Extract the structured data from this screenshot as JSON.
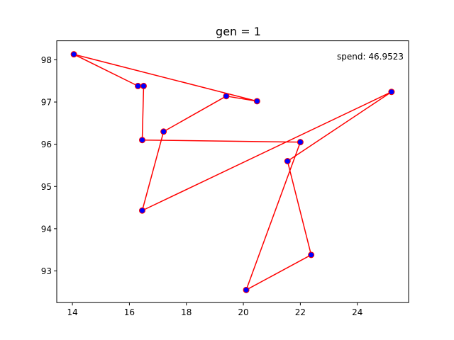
{
  "chart_data": {
    "type": "scatter",
    "title": "gen = 1",
    "xlabel": "",
    "ylabel": "",
    "xlim": [
      13.45,
      25.8
    ],
    "ylim": [
      92.25,
      98.45
    ],
    "x_ticks": [
      14,
      16,
      18,
      20,
      22,
      24
    ],
    "y_ticks": [
      93,
      94,
      95,
      96,
      97,
      98
    ],
    "grid": false,
    "annotation": "spend: 46.9523",
    "point_color": "#0000ff",
    "point_edge_color": "#ff0000",
    "line_color": "#ff0000",
    "points": [
      {
        "x": 14.05,
        "y": 98.13
      },
      {
        "x": 16.3,
        "y": 97.38
      },
      {
        "x": 16.5,
        "y": 97.38
      },
      {
        "x": 16.45,
        "y": 96.1
      },
      {
        "x": 17.2,
        "y": 96.3
      },
      {
        "x": 19.4,
        "y": 97.14
      },
      {
        "x": 20.48,
        "y": 97.02
      },
      {
        "x": 21.55,
        "y": 95.6
      },
      {
        "x": 22.0,
        "y": 96.05
      },
      {
        "x": 22.38,
        "y": 93.38
      },
      {
        "x": 20.1,
        "y": 92.55
      },
      {
        "x": 16.45,
        "y": 94.43
      },
      {
        "x": 25.2,
        "y": 97.24
      }
    ],
    "path_order": [
      0,
      6,
      5,
      4,
      11,
      12,
      7,
      9,
      10,
      8,
      3,
      2,
      1,
      0
    ]
  }
}
